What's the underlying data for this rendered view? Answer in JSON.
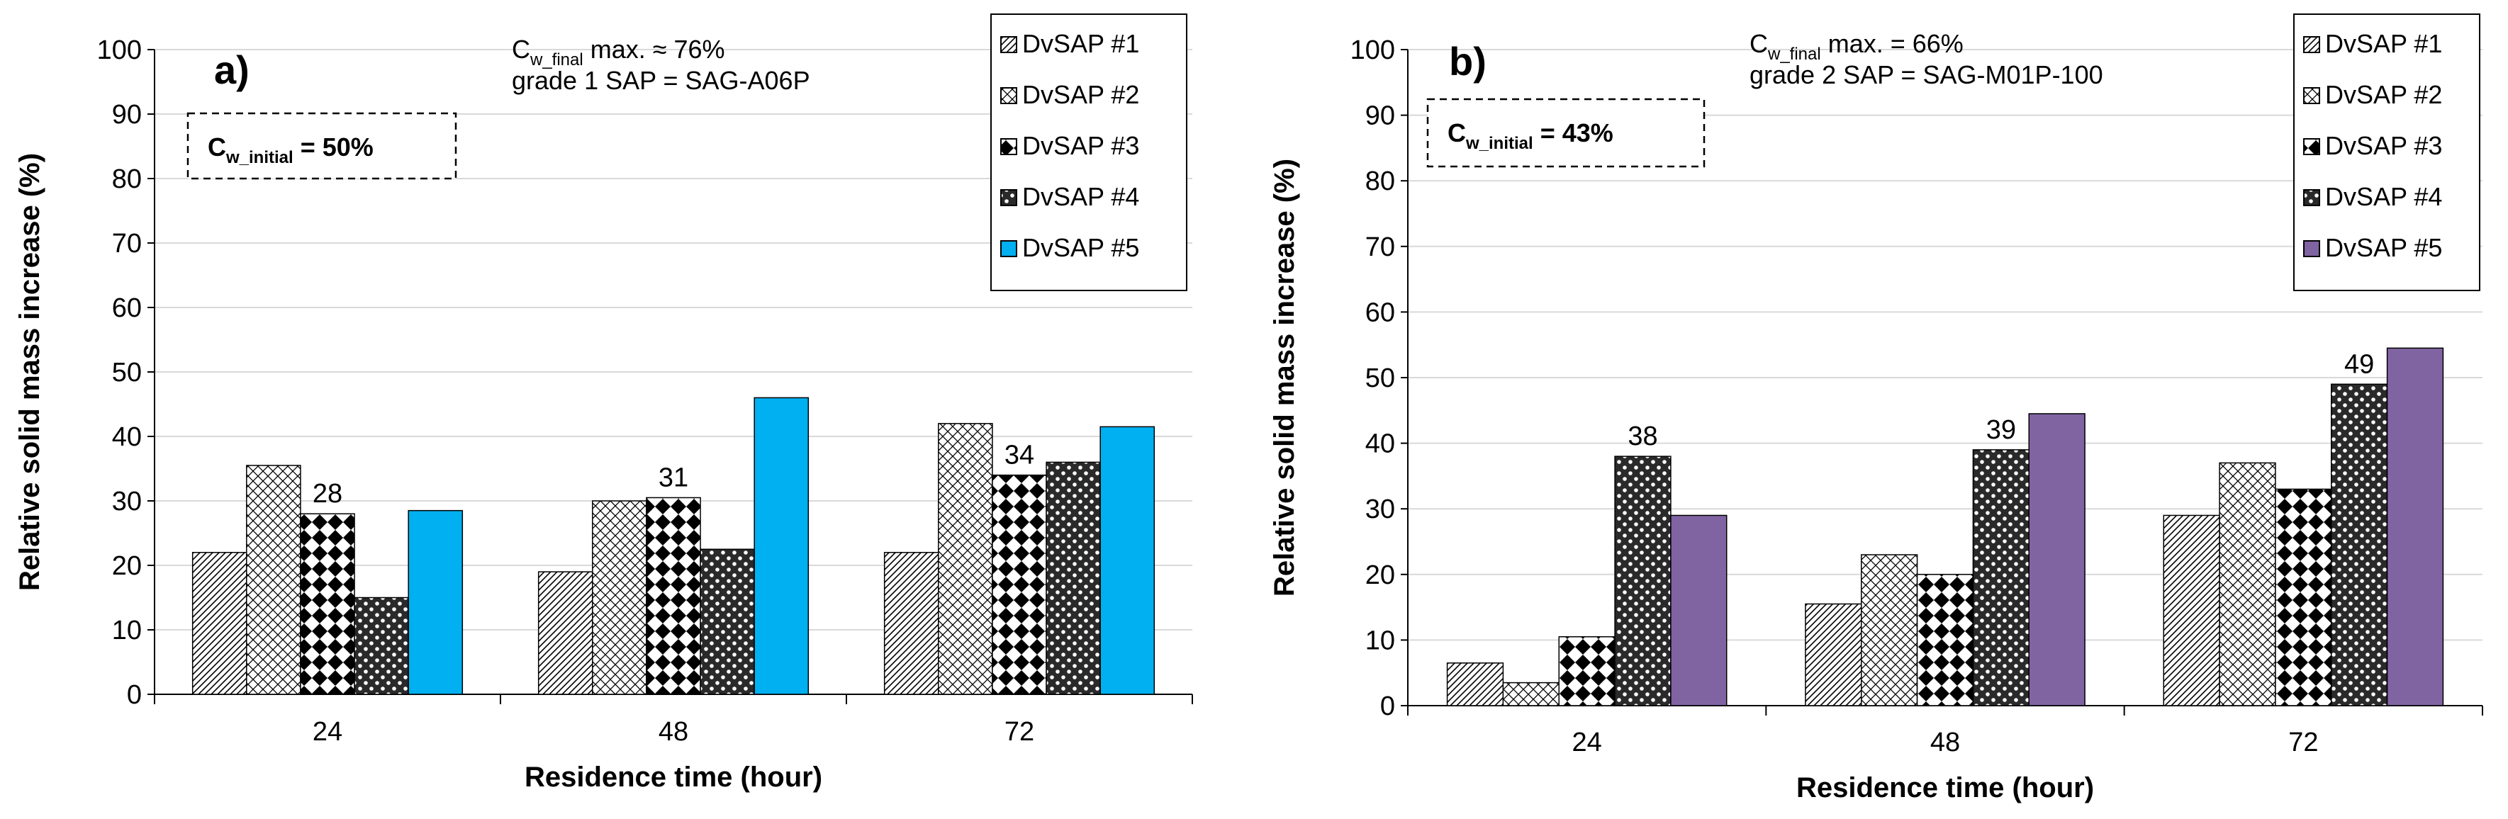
{
  "chart_data": [
    {
      "type": "bar",
      "panel_label": "a)",
      "title": "",
      "xlabel": "Residence time (hour)",
      "ylabel": "Relative solid mass increase (%)",
      "ylim": [
        0,
        100
      ],
      "yticks": [
        0,
        10,
        20,
        30,
        40,
        50,
        60,
        70,
        80,
        90,
        100
      ],
      "grid": true,
      "categories": [
        "24",
        "48",
        "72"
      ],
      "series": [
        {
          "name": "DvSAP #1",
          "values": [
            22,
            19,
            22
          ],
          "pattern": "diag"
        },
        {
          "name": "DvSAP #2",
          "values": [
            35.5,
            30,
            42
          ],
          "pattern": "cross"
        },
        {
          "name": "DvSAP #3",
          "values": [
            28,
            30.5,
            34
          ],
          "pattern": "checker"
        },
        {
          "name": "DvSAP #4",
          "values": [
            15,
            22.5,
            36
          ],
          "pattern": "dots"
        },
        {
          "name": "DvSAP #5",
          "values": [
            28.5,
            46,
            41.5
          ],
          "pattern": "solid",
          "color": "#00B0F0"
        }
      ],
      "data_labels": [
        {
          "category": "24",
          "series": "DvSAP #3",
          "text": "28"
        },
        {
          "category": "48",
          "series": "DvSAP #3",
          "text": "31"
        },
        {
          "category": "72",
          "series": "DvSAP #3",
          "text": "34"
        }
      ],
      "annotation_line1": {
        "prefix": "C",
        "sub": "w_final",
        "suffix": " max. ≈ 76%"
      },
      "annotation_line2": "grade 1 SAP = SAG-A06P",
      "box": {
        "prefix": "C",
        "sub": "w_initial",
        "suffix": " = 50%"
      },
      "legend_position": "top-right"
    },
    {
      "type": "bar",
      "panel_label": "b)",
      "title": "",
      "xlabel": "Residence time (hour)",
      "ylabel": "Relative solid mass increase (%)",
      "ylim": [
        0,
        100
      ],
      "yticks": [
        0,
        10,
        20,
        30,
        40,
        50,
        60,
        70,
        80,
        90,
        100
      ],
      "grid": true,
      "categories": [
        "24",
        "48",
        "72"
      ],
      "series": [
        {
          "name": "DvSAP #1",
          "values": [
            6.5,
            15.5,
            29
          ],
          "pattern": "diag"
        },
        {
          "name": "DvSAP #2",
          "values": [
            3.5,
            23,
            37
          ],
          "pattern": "cross"
        },
        {
          "name": "DvSAP #3",
          "values": [
            10.5,
            20,
            33
          ],
          "pattern": "checker"
        },
        {
          "name": "DvSAP #4",
          "values": [
            38,
            39,
            49
          ],
          "pattern": "dots"
        },
        {
          "name": "DvSAP #5",
          "values": [
            29,
            44.5,
            54.5
          ],
          "pattern": "solid",
          "color": "#8064A2"
        }
      ],
      "data_labels": [
        {
          "category": "24",
          "series": "DvSAP #4",
          "text": "38"
        },
        {
          "category": "48",
          "series": "DvSAP #4",
          "text": "39"
        },
        {
          "category": "72",
          "series": "DvSAP #4",
          "text": "49"
        }
      ],
      "annotation_line1": {
        "prefix": "C",
        "sub": "w_final",
        "suffix": " max. = 66%"
      },
      "annotation_line2": "grade 2 SAP = SAG-M01P-100",
      "box": {
        "prefix": "C",
        "sub": "w_initial",
        "suffix": " = 43%"
      },
      "legend_position": "top-right"
    }
  ]
}
